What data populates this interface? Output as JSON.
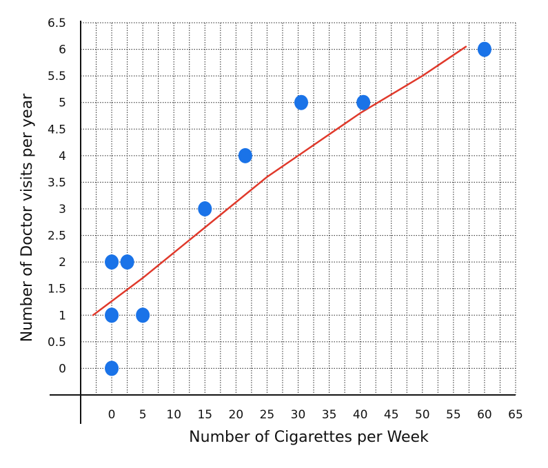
{
  "chart_data": {
    "type": "scatter",
    "title": "",
    "xlabel": "Number of Cigarettes per Week",
    "ylabel": "Number of Doctor visits per year",
    "x_ticks": [
      "0",
      "5",
      "10",
      "15",
      "20",
      "25",
      "30",
      "35",
      "40",
      "45",
      "50",
      "55",
      "60",
      "65"
    ],
    "y_ticks": [
      "0",
      "0.5",
      "1",
      "1.5",
      "2",
      "2.5",
      "3",
      "3.5",
      "4",
      "4.5",
      "5",
      "5.5",
      "6",
      "6.5"
    ],
    "xlim": [
      -5,
      65
    ],
    "ylim": [
      -0.5,
      6.5
    ],
    "grid": true,
    "legend": "none",
    "series": [
      {
        "color": "#1a73e8",
        "points": [
          {
            "x": 0,
            "y": 0
          },
          {
            "x": 0,
            "y": 1
          },
          {
            "x": 0,
            "y": 2
          },
          {
            "x": 2.5,
            "y": 2
          },
          {
            "x": 5,
            "y": 1
          },
          {
            "x": 15,
            "y": 3
          },
          {
            "x": 21.5,
            "y": 4
          },
          {
            "x": 30.5,
            "y": 5
          },
          {
            "x": 40.5,
            "y": 5
          },
          {
            "x": 60,
            "y": 6
          }
        ]
      }
    ],
    "trend_line": {
      "color": "#e0392b",
      "points": [
        {
          "x": -3,
          "y": 1.0
        },
        {
          "x": 5,
          "y": 1.7
        },
        {
          "x": 15,
          "y": 2.65
        },
        {
          "x": 25,
          "y": 3.6
        },
        {
          "x": 30,
          "y": 4.0
        },
        {
          "x": 40,
          "y": 4.8
        },
        {
          "x": 50,
          "y": 5.5
        },
        {
          "x": 57,
          "y": 6.05
        }
      ]
    }
  }
}
